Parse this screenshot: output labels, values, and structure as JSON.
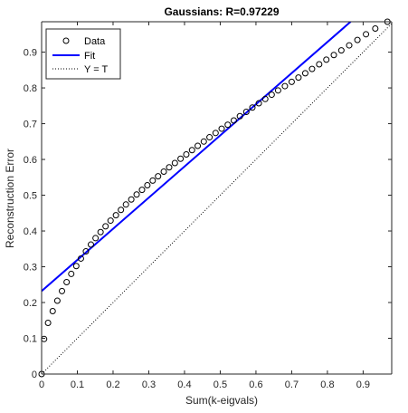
{
  "chart_data": {
    "type": "scatter",
    "title": "Gaussians: R=0.97229",
    "xlabel": "Sum(k-eigvals)",
    "ylabel": "Reconstruction Error",
    "xlim": [
      0,
      0.98
    ],
    "ylim": [
      0,
      0.985
    ],
    "xticks": [
      0,
      0.1,
      0.2,
      0.3,
      0.4,
      0.5,
      0.6,
      0.7,
      0.8,
      0.9
    ],
    "yticks": [
      0,
      0.1,
      0.2,
      0.3,
      0.4,
      0.5,
      0.6,
      0.7,
      0.8,
      0.9
    ],
    "grid": false,
    "legend_position": "top-left",
    "legend": [
      "Data",
      "Fit",
      "Y = T"
    ],
    "colors": {
      "data": "#000000",
      "fit": "#0000ff",
      "identity": "#000000"
    },
    "series": [
      {
        "name": "Data",
        "x": [
          0.0,
          0.007,
          0.018,
          0.031,
          0.044,
          0.057,
          0.07,
          0.083,
          0.097,
          0.11,
          0.124,
          0.138,
          0.151,
          0.165,
          0.179,
          0.193,
          0.208,
          0.222,
          0.236,
          0.251,
          0.266,
          0.281,
          0.296,
          0.311,
          0.326,
          0.342,
          0.357,
          0.373,
          0.389,
          0.405,
          0.421,
          0.437,
          0.454,
          0.47,
          0.487,
          0.504,
          0.521,
          0.538,
          0.555,
          0.573,
          0.59,
          0.608,
          0.626,
          0.644,
          0.662,
          0.681,
          0.7,
          0.719,
          0.738,
          0.757,
          0.777,
          0.797,
          0.818,
          0.839,
          0.861,
          0.884,
          0.908,
          0.934,
          0.968
        ],
        "y": [
          0.0,
          0.098,
          0.143,
          0.176,
          0.205,
          0.232,
          0.257,
          0.28,
          0.302,
          0.323,
          0.343,
          0.362,
          0.38,
          0.397,
          0.413,
          0.429,
          0.444,
          0.459,
          0.474,
          0.488,
          0.502,
          0.515,
          0.528,
          0.541,
          0.553,
          0.566,
          0.578,
          0.59,
          0.602,
          0.614,
          0.626,
          0.638,
          0.65,
          0.662,
          0.674,
          0.686,
          0.697,
          0.709,
          0.721,
          0.733,
          0.745,
          0.757,
          0.769,
          0.781,
          0.793,
          0.805,
          0.817,
          0.829,
          0.841,
          0.853,
          0.866,
          0.879,
          0.892,
          0.905,
          0.919,
          0.934,
          0.95,
          0.966,
          0.985
        ]
      },
      {
        "name": "Fit",
        "x": [
          0,
          0.865
        ],
        "y": [
          0.232,
          0.985
        ]
      },
      {
        "name": "Y = T",
        "x": [
          0,
          0.985
        ],
        "y": [
          0,
          0.985
        ]
      }
    ]
  }
}
